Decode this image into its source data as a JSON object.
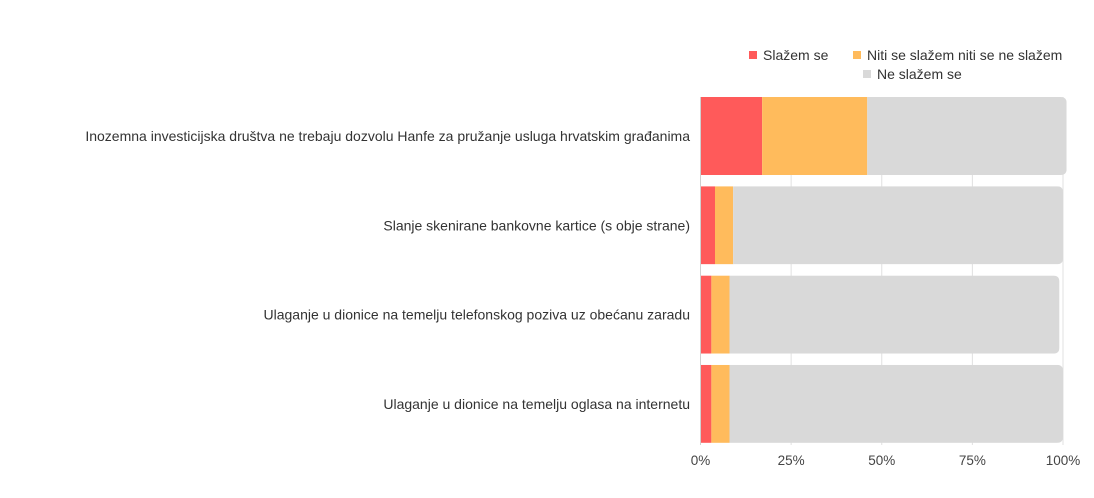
{
  "chart_data": {
    "type": "bar",
    "orientation": "horizontal",
    "stacked": true,
    "categories": [
      "Inozemna investicijska društva ne trebaju dozvolu Hanfe za pružanje usluga hrvatskim građanima",
      "Slanje skenirane bankovne kartice (s obje strane)",
      "Ulaganje u dionice na temelju telefonskog poziva uz obećanu zaradu",
      "Ulaganje u dionice na temelju oglasa na internetu"
    ],
    "series": [
      {
        "name": "Slažem se",
        "color": "#ff5a5a",
        "values": [
          17,
          4,
          3,
          3
        ]
      },
      {
        "name": "Niti se slažem niti se ne slažem",
        "color": "#ffbb5c",
        "values": [
          29,
          5,
          5,
          5
        ]
      },
      {
        "name": "Ne slažem se",
        "color": "#d9d9d9",
        "values": [
          55,
          91,
          91,
          92
        ]
      }
    ],
    "xlim": [
      0,
      100
    ],
    "xticks": [
      "0%",
      "25%",
      "50%",
      "75%",
      "100%"
    ],
    "grid": true,
    "legend": "top-right",
    "title": "",
    "xlabel": "",
    "ylabel": ""
  }
}
